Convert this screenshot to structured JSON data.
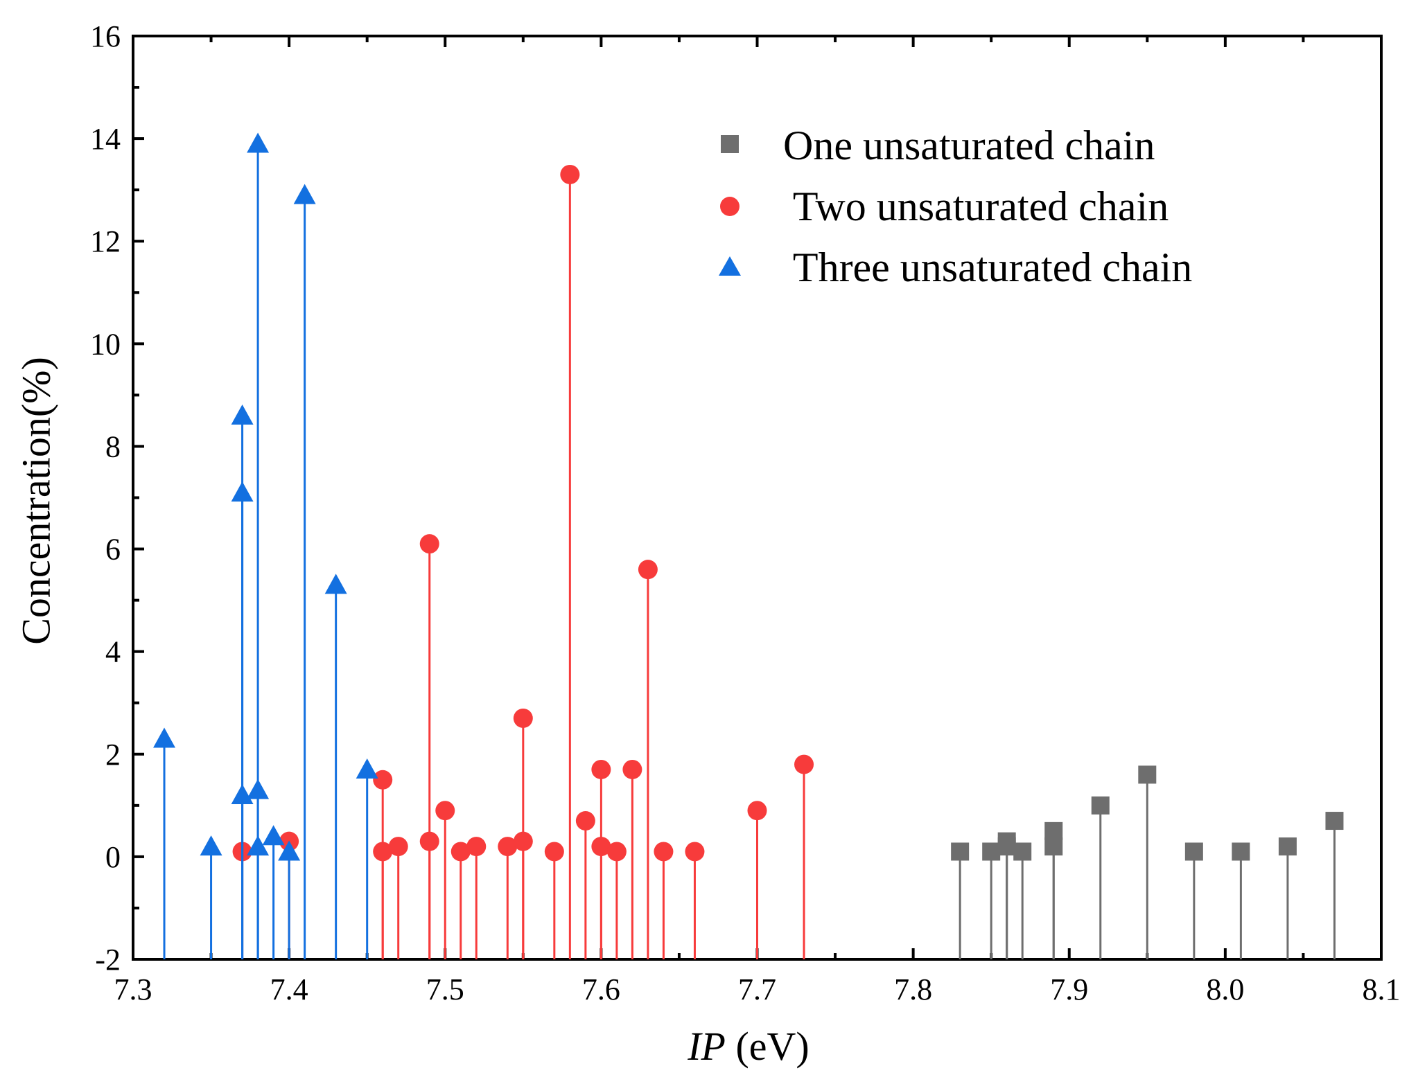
{
  "chart_data": {
    "type": "scatter",
    "subtype": "stem",
    "title": "",
    "xlabel_italic": "IP",
    "xlabel_unit": " (eV)",
    "ylabel": "Concentration(%)",
    "xlim": [
      7.3,
      8.1
    ],
    "ylim": [
      -2,
      16
    ],
    "xticks": [
      "7.3",
      "7.4",
      "7.5",
      "7.6",
      "7.7",
      "7.8",
      "7.9",
      "8.0",
      "8.1"
    ],
    "yticks": [
      "-2",
      "0",
      "2",
      "4",
      "6",
      "8",
      "10",
      "12",
      "14",
      "16"
    ],
    "legend_position": "top-right",
    "series": [
      {
        "name": "One unsaturated chain",
        "marker": "square",
        "color": "#6e6e6e",
        "points": [
          [
            7.83,
            0.1
          ],
          [
            7.85,
            0.1
          ],
          [
            7.86,
            0.3
          ],
          [
            7.86,
            0.2
          ],
          [
            7.87,
            0.1
          ],
          [
            7.89,
            0.2
          ],
          [
            7.89,
            0.5
          ],
          [
            7.92,
            1.0
          ],
          [
            7.95,
            1.6
          ],
          [
            7.98,
            0.1
          ],
          [
            8.01,
            0.1
          ],
          [
            8.04,
            0.2
          ],
          [
            8.07,
            0.7
          ]
        ]
      },
      {
        "name": " Two unsaturated chain",
        "marker": "circle",
        "color": "#f73b3b",
        "points": [
          [
            7.37,
            0.1
          ],
          [
            7.4,
            0.3
          ],
          [
            7.46,
            1.5
          ],
          [
            7.46,
            0.1
          ],
          [
            7.47,
            0.2
          ],
          [
            7.49,
            6.1
          ],
          [
            7.49,
            0.3
          ],
          [
            7.5,
            0.9
          ],
          [
            7.51,
            0.1
          ],
          [
            7.52,
            0.2
          ],
          [
            7.54,
            0.2
          ],
          [
            7.55,
            2.7
          ],
          [
            7.55,
            0.3
          ],
          [
            7.57,
            0.1
          ],
          [
            7.58,
            13.3
          ],
          [
            7.59,
            0.7
          ],
          [
            7.6,
            1.7
          ],
          [
            7.6,
            0.2
          ],
          [
            7.61,
            0.1
          ],
          [
            7.62,
            1.7
          ],
          [
            7.63,
            5.6
          ],
          [
            7.64,
            0.1
          ],
          [
            7.66,
            0.1
          ],
          [
            7.7,
            0.9
          ],
          [
            7.73,
            1.8
          ]
        ]
      },
      {
        "name": " Three unsaturated chain",
        "marker": "triangle",
        "color": "#1370e0",
        "points": [
          [
            7.32,
            2.3
          ],
          [
            7.35,
            0.2
          ],
          [
            7.37,
            8.6
          ],
          [
            7.37,
            7.1
          ],
          [
            7.37,
            1.2
          ],
          [
            7.38,
            13.9
          ],
          [
            7.38,
            1.3
          ],
          [
            7.38,
            0.2
          ],
          [
            7.39,
            0.4
          ],
          [
            7.4,
            0.1
          ],
          [
            7.41,
            12.9
          ],
          [
            7.43,
            5.3
          ],
          [
            7.45,
            1.7
          ]
        ]
      }
    ]
  }
}
